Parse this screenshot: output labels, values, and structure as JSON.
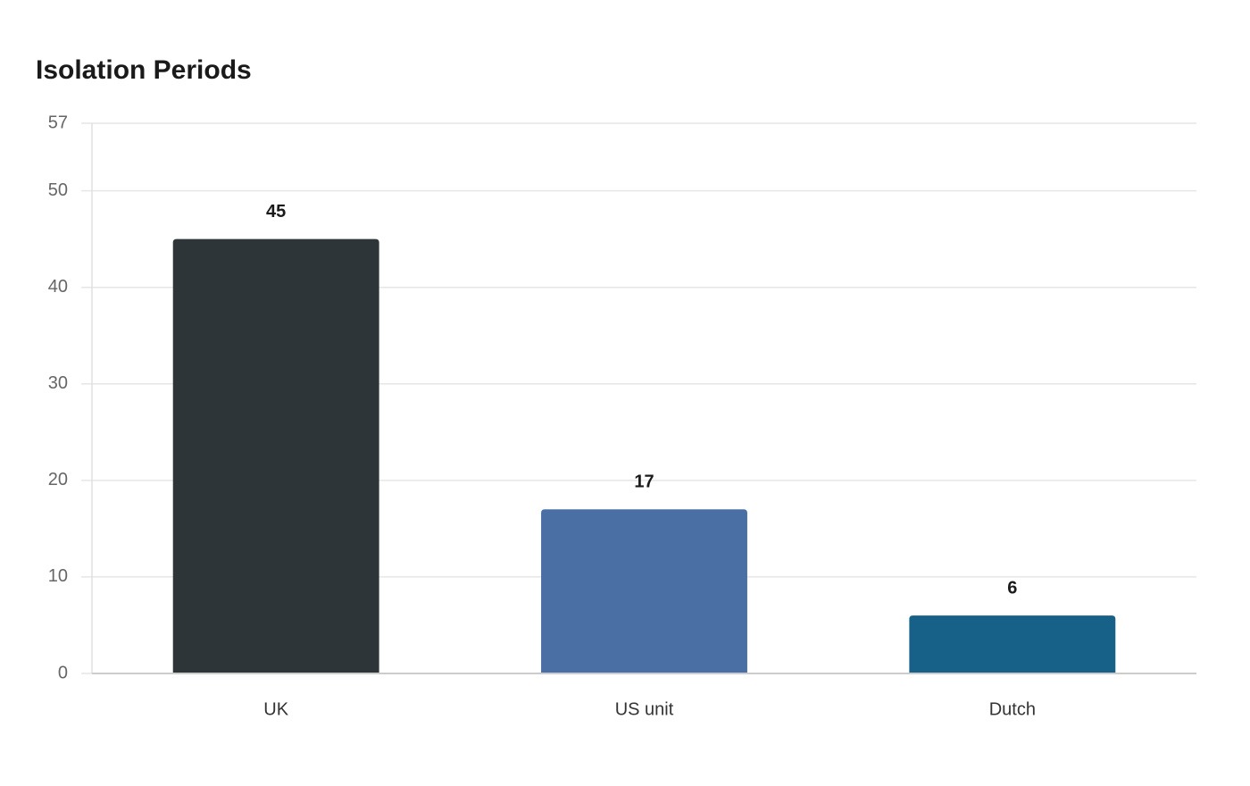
{
  "chart_data": {
    "type": "bar",
    "title": "Isolation Periods",
    "categories": [
      "UK",
      "US unit",
      "Dutch"
    ],
    "values": [
      45,
      17,
      6
    ],
    "colors": [
      "#2e3538",
      "#4a6fa5",
      "#176087"
    ],
    "ylim": [
      0,
      57
    ],
    "yticks": [
      0,
      10,
      20,
      30,
      40,
      50,
      57
    ],
    "grid": true
  }
}
